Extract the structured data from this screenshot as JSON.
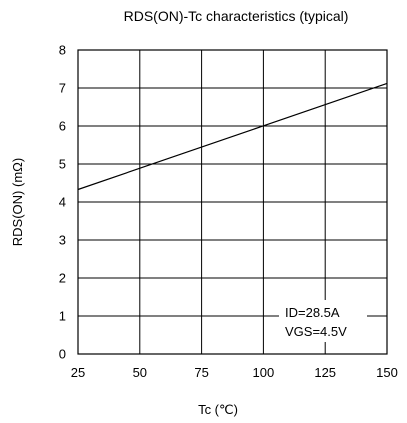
{
  "chart_data": {
    "type": "line",
    "title": "RDS(ON)-Tc characteristics (typical)",
    "xlabel": "Tc (℃)",
    "ylabel": "RDS(ON) (mΩ)",
    "xlim": [
      25,
      150
    ],
    "ylim": [
      0,
      8
    ],
    "xticks": [
      "25",
      "50",
      "75",
      "100",
      "125",
      "150"
    ],
    "yticks": [
      "0",
      "1",
      "2",
      "3",
      "4",
      "5",
      "6",
      "7",
      "8"
    ],
    "grid": true,
    "series": [
      {
        "x": [
          25,
          150
        ],
        "y": [
          4.33,
          7.12
        ]
      }
    ],
    "annotations": [
      "ID=28.5A",
      "VGS=4.5V"
    ],
    "colors": {
      "line": "#000000",
      "grid": "#000000",
      "background": "#ffffff"
    }
  }
}
